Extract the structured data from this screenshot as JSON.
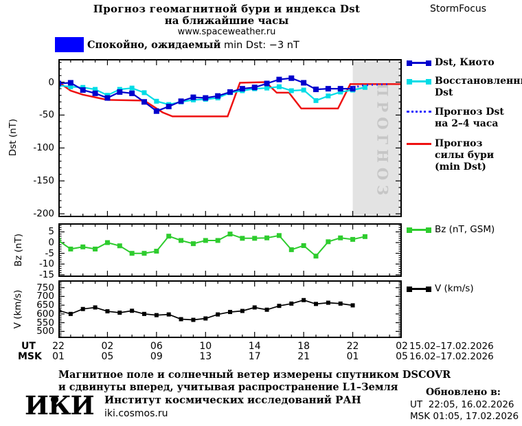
{
  "header": {
    "title_line1": "Прогноз геомагнитной бури и индекса Dst",
    "title_line2": "на ближайшие часы",
    "site": "www.spaceweather.ru",
    "brand": "StormFocus",
    "status_banner": {
      "color": "#0000ff",
      "label_ru": "Спокойно, ожидаемый",
      "label_latin": "min Dst: −3 nT"
    }
  },
  "chart_data": {
    "type": "line",
    "x_axis": {
      "xlim_hours": [
        0,
        28
      ],
      "minor_step_hours": 1,
      "major_step_hours": 4,
      "ut_label": "UT",
      "msk_label": "MSK",
      "ut_ticks": [
        "22",
        "02",
        "06",
        "10",
        "14",
        "18",
        "22",
        "02"
      ],
      "msk_ticks": [
        "01",
        "05",
        "09",
        "13",
        "17",
        "21",
        "01",
        "05"
      ],
      "ut_daterange": "15.02–17.02.2026",
      "msk_daterange": "16.02–17.02.2026"
    },
    "panels": [
      {
        "id": "dst",
        "ylabel": "Dst (nT)",
        "ylim": [
          -205,
          35
        ],
        "yticks": [
          0,
          -50,
          -100,
          -150,
          -200
        ],
        "yminor": 10,
        "ymajor": 50,
        "forecast_region": {
          "from_hour": 24,
          "label": "ПРОГНОЗ",
          "fill": "#e3e3e3",
          "label_color": "#c6c6c6"
        },
        "series": [
          {
            "name": "Прогноз силы бури (min Dst)",
            "color": "#ee1111",
            "width": 2.5,
            "xy": [
              [
                0,
                0
              ],
              [
                1,
                -13
              ],
              [
                2,
                -19
              ],
              [
                3,
                -23
              ],
              [
                4,
                -27
              ],
              [
                7,
                -28
              ],
              [
                8.5,
                -46
              ],
              [
                9.3,
                -52
              ],
              [
                13.8,
                -52
              ],
              [
                14.8,
                -1
              ],
              [
                16.9,
                0
              ],
              [
                17.8,
                -16
              ],
              [
                18.8,
                -16
              ],
              [
                19.8,
                -40
              ],
              [
                22.8,
                -40
              ],
              [
                23.8,
                -3
              ],
              [
                28,
                -3
              ]
            ]
          },
          {
            "name": "Восстановленный Dst",
            "color": "#00dce6",
            "width": 2.2,
            "marker": "square",
            "msize": 7,
            "xy": [
              [
                0,
                -5
              ],
              [
                1,
                -7
              ],
              [
                2,
                -8
              ],
              [
                3,
                -11
              ],
              [
                4,
                -20
              ],
              [
                5,
                -11
              ],
              [
                6,
                -9
              ],
              [
                7,
                -16
              ],
              [
                8,
                -29
              ],
              [
                9,
                -34
              ],
              [
                10,
                -30
              ],
              [
                11,
                -27
              ],
              [
                12,
                -26
              ],
              [
                13,
                -24
              ],
              [
                14,
                -16
              ],
              [
                15,
                -13
              ],
              [
                16,
                -10
              ],
              [
                17,
                -9
              ],
              [
                18,
                -7
              ],
              [
                19,
                -13
              ],
              [
                20,
                -12
              ],
              [
                21,
                -28
              ],
              [
                22,
                -21
              ],
              [
                23,
                -15
              ],
              [
                24,
                -12
              ],
              [
                25,
                -8
              ]
            ]
          },
          {
            "name": "Dst, Киото",
            "color": "#0000cd",
            "width": 2.2,
            "marker": "square",
            "msize": 8,
            "xy": [
              [
                0,
                -2
              ],
              [
                1,
                -1
              ],
              [
                2,
                -12
              ],
              [
                3,
                -17
              ],
              [
                4,
                -24
              ],
              [
                5,
                -15
              ],
              [
                6,
                -17
              ],
              [
                7,
                -30
              ],
              [
                8,
                -44
              ],
              [
                9,
                -37
              ],
              [
                10,
                -29
              ],
              [
                11,
                -23
              ],
              [
                12,
                -24
              ],
              [
                13,
                -21
              ],
              [
                14,
                -15
              ],
              [
                15,
                -10
              ],
              [
                16,
                -8
              ],
              [
                17,
                -2
              ],
              [
                18,
                4
              ],
              [
                19,
                6
              ],
              [
                20,
                -1
              ],
              [
                21,
                -11
              ],
              [
                22,
                -10
              ],
              [
                23,
                -10
              ],
              [
                24,
                -10
              ]
            ]
          },
          {
            "name": "Прогноз Dst на 2–4 часа",
            "color": "#2222ff",
            "width": 2.8,
            "dash": "2 5",
            "xy": [
              [
                24,
                -9
              ],
              [
                24.7,
                -5
              ],
              [
                25.5,
                -4
              ],
              [
                27,
                -3
              ]
            ]
          }
        ],
        "legend": [
          {
            "lines": [
              "Dst, Киото"
            ],
            "color": "#0000cd",
            "style": "squares"
          },
          {
            "lines": [
              "Восстановленный",
              "Dst"
            ],
            "color": "#00dce6",
            "style": "squares"
          },
          {
            "lines": [
              "Прогноз Dst",
              "на 2–4 часа"
            ],
            "color": "#2222ff",
            "style": "dotted"
          },
          {
            "lines": [
              "Прогноз",
              "силы бури",
              "(min Dst)"
            ],
            "color": "#ee1111",
            "style": "line"
          }
        ]
      },
      {
        "id": "bz",
        "ylabel": "Bz (nT)",
        "ylim": [
          -16,
          9
        ],
        "yticks": [
          5,
          0,
          -5,
          -10,
          -15
        ],
        "yminor": 1,
        "ymajor": 5,
        "series": [
          {
            "name": "Bz (nT, GSM)",
            "color": "#2ecc2e",
            "width": 2,
            "marker": "square",
            "msize": 7,
            "xy": [
              [
                0,
                1
              ],
              [
                1,
                -3
              ],
              [
                2,
                -2
              ],
              [
                3,
                -3
              ],
              [
                4,
                0
              ],
              [
                5,
                -1.5
              ],
              [
                6,
                -5
              ],
              [
                7,
                -5
              ],
              [
                8,
                -4
              ],
              [
                9,
                3
              ],
              [
                10,
                1
              ],
              [
                11,
                -0.5
              ],
              [
                12,
                1
              ],
              [
                13,
                1
              ],
              [
                14,
                4
              ],
              [
                15,
                2
              ],
              [
                16,
                2
              ],
              [
                17,
                2.2
              ],
              [
                18,
                3.3
              ],
              [
                19,
                -3.3
              ],
              [
                20,
                -1.4
              ],
              [
                21,
                -6.3
              ],
              [
                22,
                0.4
              ],
              [
                23,
                2.2
              ],
              [
                24,
                1.5
              ],
              [
                25,
                2.8
              ]
            ]
          }
        ],
        "legend": [
          {
            "lines": [
              "Bz (nT, GSM)"
            ],
            "color": "#2ecc2e",
            "style": "squares",
            "latin": true
          }
        ]
      },
      {
        "id": "v",
        "ylabel": "V (km/s)",
        "ylim": [
          462,
          792
        ],
        "yticks": [
          750,
          700,
          650,
          600,
          550,
          500
        ],
        "yminor": 10,
        "ymajor": 50,
        "series": [
          {
            "name": "V (km/s)",
            "color": "#000000",
            "width": 1.7,
            "marker": "square",
            "msize": 6,
            "xy": [
              [
                0,
                620
              ],
              [
                1,
                600
              ],
              [
                2,
                628
              ],
              [
                3,
                637
              ],
              [
                4,
                615
              ],
              [
                5,
                607
              ],
              [
                6,
                618
              ],
              [
                7,
                600
              ],
              [
                8,
                593
              ],
              [
                9,
                597
              ],
              [
                10,
                570
              ],
              [
                11,
                566
              ],
              [
                12,
                574
              ],
              [
                13,
                597
              ],
              [
                14,
                611
              ],
              [
                15,
                617
              ],
              [
                16,
                637
              ],
              [
                17,
                624
              ],
              [
                18,
                646
              ],
              [
                19,
                659
              ],
              [
                20,
                679
              ],
              [
                21,
                657
              ],
              [
                22,
                664
              ],
              [
                23,
                659
              ],
              [
                24,
                649
              ]
            ]
          }
        ],
        "legend": [
          {
            "lines": [
              "V (km/s)"
            ],
            "color": "#000000",
            "style": "squares",
            "latin": true
          }
        ]
      }
    ]
  },
  "footer": {
    "note_line1": "Магнитное поле и солнечный ветер измерены спутником DSCOVR",
    "note_line2": "и сдвинуты вперед, учитывая распространение L1–Земля",
    "logo_text": "ИКИ",
    "institute": "Институт космических исследований РАН",
    "institute_site": "iki.cosmos.ru",
    "updated_title": "Обновлено в:",
    "updated_ut": "UT  22:05, 16.02.2026",
    "updated_msk": "MSK 01:05, 17.02.2026"
  }
}
